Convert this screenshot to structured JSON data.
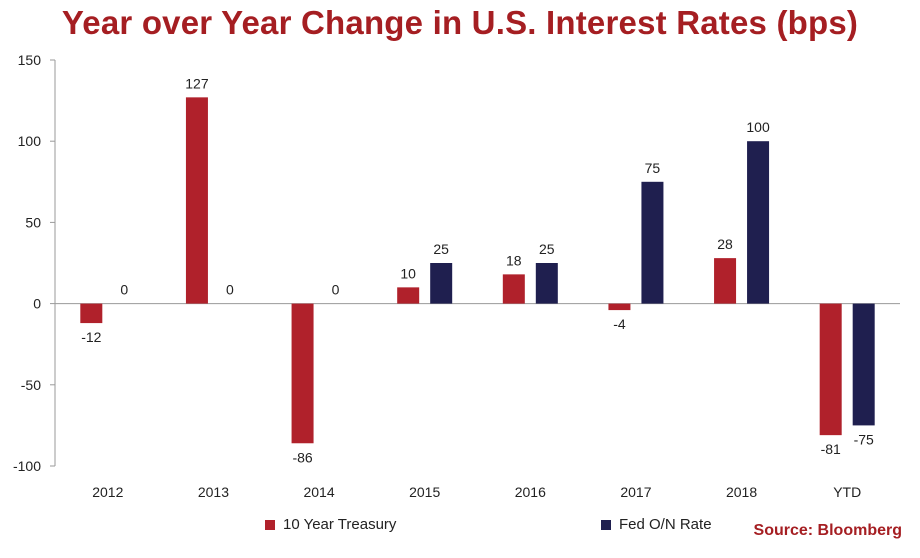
{
  "chart_data": {
    "type": "bar",
    "title": "Year over Year Change in U.S. Interest Rates (bps)",
    "categories": [
      "2012",
      "2013",
      "2014",
      "2015",
      "2016",
      "2017",
      "2018",
      "YTD"
    ],
    "series": [
      {
        "name": "10 Year Treasury",
        "color": "#b0212b",
        "values": [
          -12,
          127,
          -86,
          10,
          18,
          -4,
          28,
          -81
        ]
      },
      {
        "name": "Fed O/N Rate",
        "color": "#1f1f4f",
        "values": [
          0,
          0,
          0,
          25,
          25,
          75,
          100,
          -75
        ]
      }
    ],
    "ylim": [
      -100,
      150
    ],
    "yticks": [
      150,
      100,
      50,
      0,
      -50,
      -100
    ],
    "ytick_labels": [
      "150",
      "100",
      "50",
      "0",
      "-50",
      "-100"
    ],
    "grid": false,
    "legend_position": "bottom"
  },
  "source": "Source: Bloomberg"
}
